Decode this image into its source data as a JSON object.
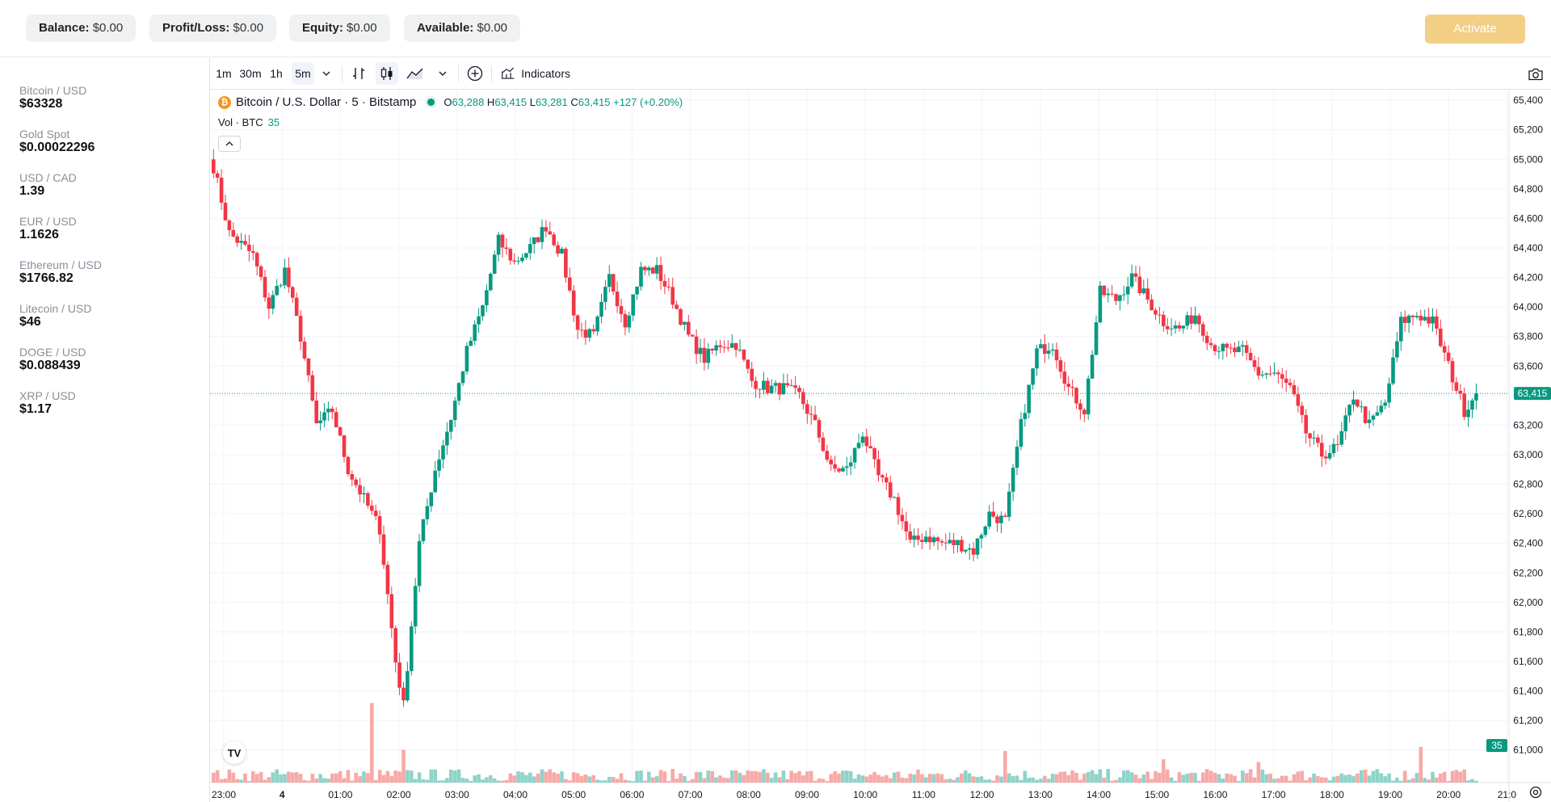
{
  "account": {
    "balance": {
      "label": "Balance:",
      "value": "$0.00"
    },
    "profit_loss": {
      "label": "Profit/Loss:",
      "value": "$0.00"
    },
    "equity": {
      "label": "Equity:",
      "value": "$0.00"
    },
    "available": {
      "label": "Available:",
      "value": "$0.00"
    },
    "activate_label": "Activate"
  },
  "markets": [
    {
      "name": "Bitcoin / USD",
      "price": "$63328"
    },
    {
      "name": "Gold Spot",
      "price": "$0.00022296"
    },
    {
      "name": "USD / CAD",
      "price": "1.39"
    },
    {
      "name": "EUR / USD",
      "price": "1.1626"
    },
    {
      "name": "Ethereum / USD",
      "price": "$1766.82"
    },
    {
      "name": "Litecoin / USD",
      "price": "$46"
    },
    {
      "name": "DOGE / USD",
      "price": "$0.088439"
    },
    {
      "name": "XRP / USD",
      "price": "$1.17"
    }
  ],
  "toolbar": {
    "intervals": [
      "1m",
      "30m",
      "1h",
      "5m"
    ],
    "active_interval": "5m",
    "indicators_label": "Indicators"
  },
  "legend": {
    "icon_letter": "₿",
    "symbol": "Bitcoin / U.S. Dollar · 5 · Bitstamp",
    "o_label": "O",
    "o": "63,288",
    "h_label": "H",
    "h": "63,415",
    "l_label": "L",
    "l": "63,281",
    "c_label": "C",
    "c": "63,415",
    "change": "+127 (+0.20%)",
    "vol_label": "Vol · BTC",
    "vol_value": "35"
  },
  "colors": {
    "up": "#089981",
    "down": "#f23645",
    "vol_up": "#8fd3c9",
    "vol_down": "#f7a9a7",
    "grid": "#f0f3fa"
  },
  "chart_data": {
    "type": "candlestick",
    "ylim": [
      60900,
      65450
    ],
    "y_ticks": [
      "65,400",
      "65,200",
      "65,000",
      "64,800",
      "64,600",
      "64,400",
      "64,200",
      "64,000",
      "63,800",
      "63,600",
      "63,400",
      "63,200",
      "63,000",
      "62,800",
      "62,600",
      "62,400",
      "62,200",
      "62,000",
      "61,800",
      "61,600",
      "61,400",
      "61,200",
      "61,000"
    ],
    "x_ticks": [
      "23:00",
      "4",
      "01:00",
      "02:00",
      "03:00",
      "04:00",
      "05:00",
      "06:00",
      "07:00",
      "08:00",
      "09:00",
      "10:00",
      "11:00",
      "12:00",
      "13:00",
      "14:00",
      "15:00",
      "16:00",
      "17:00",
      "18:00",
      "19:00",
      "20:00",
      "21:0"
    ],
    "last_price": "63,415",
    "last_volume": "35",
    "close_anchors": [
      [
        0,
        64950
      ],
      [
        4,
        64500
      ],
      [
        10,
        64350
      ],
      [
        14,
        64000
      ],
      [
        18,
        64250
      ],
      [
        22,
        63800
      ],
      [
        26,
        63200
      ],
      [
        30,
        63300
      ],
      [
        34,
        62900
      ],
      [
        38,
        62700
      ],
      [
        42,
        62500
      ],
      [
        46,
        61600
      ],
      [
        48,
        61300
      ],
      [
        52,
        62400
      ],
      [
        56,
        62900
      ],
      [
        60,
        63250
      ],
      [
        64,
        63700
      ],
      [
        68,
        64000
      ],
      [
        72,
        64450
      ],
      [
        76,
        64300
      ],
      [
        80,
        64400
      ],
      [
        84,
        64550
      ],
      [
        88,
        64350
      ],
      [
        92,
        63850
      ],
      [
        96,
        63800
      ],
      [
        100,
        64200
      ],
      [
        104,
        63900
      ],
      [
        108,
        64250
      ],
      [
        112,
        64250
      ],
      [
        116,
        64050
      ],
      [
        120,
        63800
      ],
      [
        124,
        63650
      ],
      [
        128,
        63750
      ],
      [
        132,
        63750
      ],
      [
        136,
        63500
      ],
      [
        140,
        63450
      ],
      [
        144,
        63450
      ],
      [
        148,
        63400
      ],
      [
        152,
        63200
      ],
      [
        156,
        62900
      ],
      [
        160,
        62900
      ],
      [
        164,
        63150
      ],
      [
        168,
        62850
      ],
      [
        172,
        62700
      ],
      [
        176,
        62400
      ],
      [
        180,
        62450
      ],
      [
        184,
        62400
      ],
      [
        188,
        62400
      ],
      [
        192,
        62350
      ],
      [
        196,
        62600
      ],
      [
        200,
        62550
      ],
      [
        204,
        63200
      ],
      [
        208,
        63700
      ],
      [
        212,
        63750
      ],
      [
        216,
        63450
      ],
      [
        220,
        63300
      ],
      [
        224,
        64100
      ],
      [
        228,
        64050
      ],
      [
        232,
        64200
      ],
      [
        236,
        64050
      ],
      [
        240,
        63900
      ],
      [
        244,
        63850
      ],
      [
        248,
        63950
      ],
      [
        252,
        63750
      ],
      [
        256,
        63700
      ],
      [
        260,
        63700
      ],
      [
        264,
        63550
      ],
      [
        268,
        63550
      ],
      [
        272,
        63450
      ],
      [
        276,
        63150
      ],
      [
        280,
        63000
      ],
      [
        284,
        63050
      ],
      [
        288,
        63400
      ],
      [
        292,
        63200
      ],
      [
        296,
        63350
      ],
      [
        300,
        63900
      ],
      [
        304,
        63950
      ],
      [
        308,
        63900
      ],
      [
        312,
        63600
      ],
      [
        316,
        63300
      ],
      [
        319,
        63415
      ]
    ],
    "volume_peaks": [
      [
        40,
        1160
      ],
      [
        48,
        480
      ],
      [
        200,
        460
      ],
      [
        240,
        340
      ],
      [
        264,
        300
      ],
      [
        305,
        520
      ],
      [
        320,
        390
      ]
    ]
  }
}
